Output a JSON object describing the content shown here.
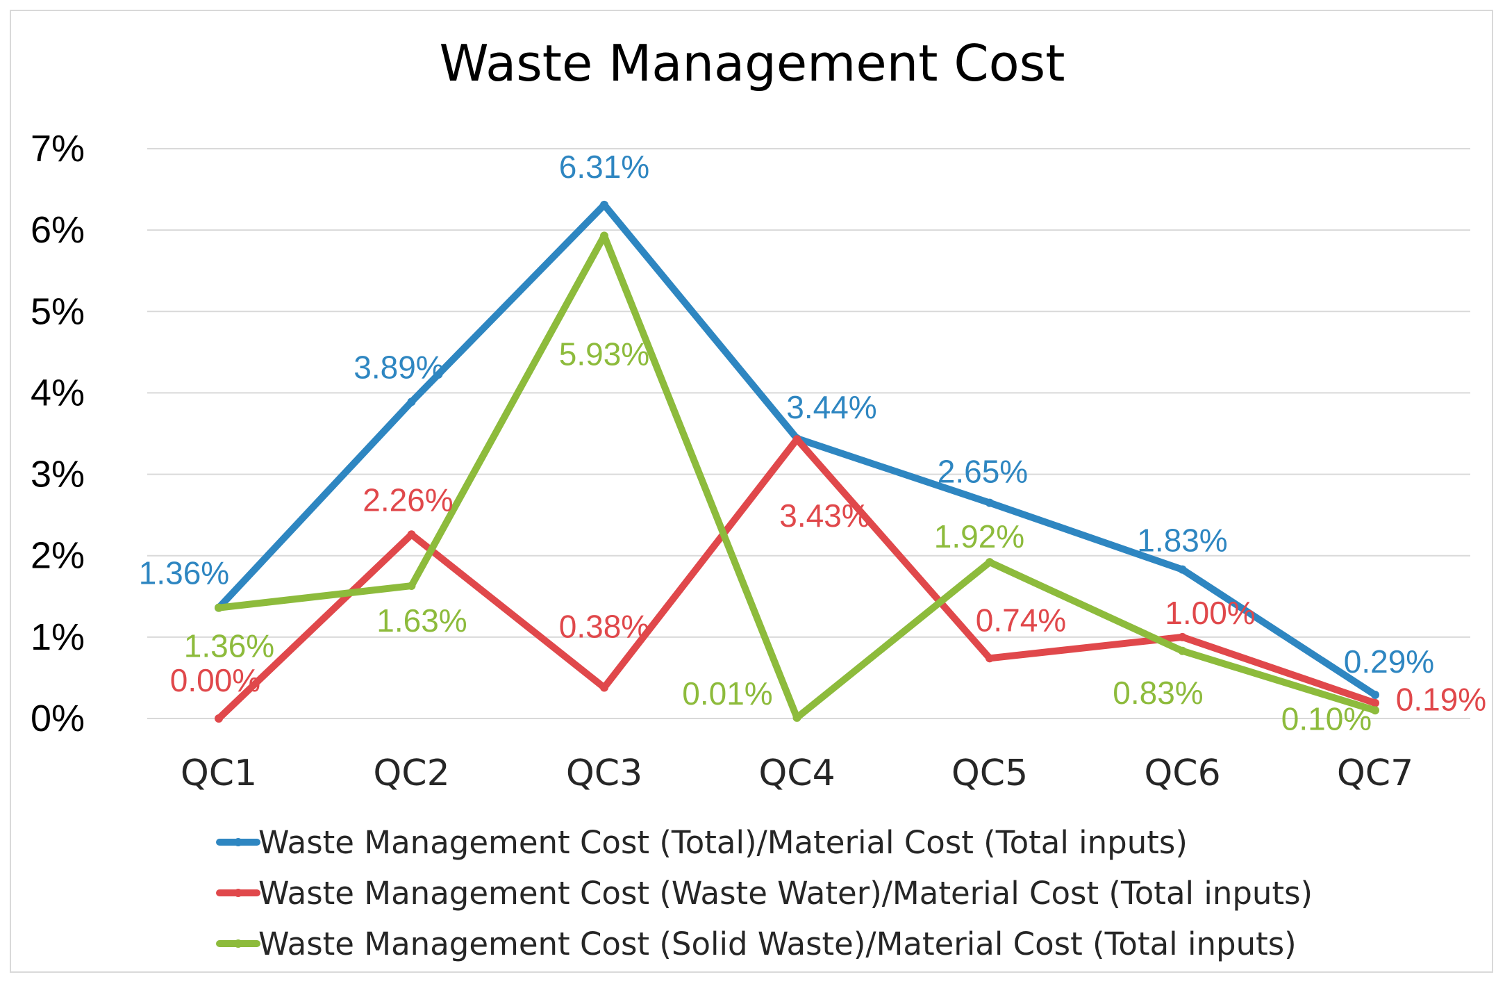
{
  "chart_data": {
    "type": "line",
    "title": "Waste Management Cost",
    "categories": [
      "QC1",
      "QC2",
      "QC3",
      "QC4",
      "QC5",
      "QC6",
      "QC7"
    ],
    "y_ticks": [
      "0%",
      "1%",
      "2%",
      "3%",
      "4%",
      "5%",
      "6%",
      "7%"
    ],
    "ylim": [
      0,
      7
    ],
    "grid": true,
    "legend_position": "bottom",
    "series": [
      {
        "name": "Waste Management Cost (Total)/Material Cost (Total inputs)",
        "color": "#2E86C1",
        "values": [
          1.36,
          3.89,
          6.31,
          3.44,
          2.65,
          1.83,
          0.29
        ],
        "labels": [
          "1.36%",
          "3.89%",
          "6.31%",
          "3.44%",
          "2.65%",
          "1.83%",
          "0.29%"
        ]
      },
      {
        "name": "Waste Management Cost (Waste Water)/Material Cost (Total inputs)",
        "color": "#E0484B",
        "values": [
          0.0,
          2.26,
          0.38,
          3.43,
          0.74,
          1.0,
          0.19
        ],
        "labels": [
          "0.00%",
          "2.26%",
          "0.38%",
          "3.43%",
          "0.74%",
          "1.00%",
          "0.19%"
        ]
      },
      {
        "name": "Waste Management Cost (Solid Waste)/Material Cost (Total inputs)",
        "color": "#8DBB3C",
        "values": [
          1.36,
          1.63,
          5.93,
          0.01,
          1.92,
          0.83,
          0.1
        ],
        "labels": [
          "1.36%",
          "1.63%",
          "5.93%",
          "0.01%",
          "1.92%",
          "0.83%",
          "0.10%"
        ]
      }
    ]
  }
}
